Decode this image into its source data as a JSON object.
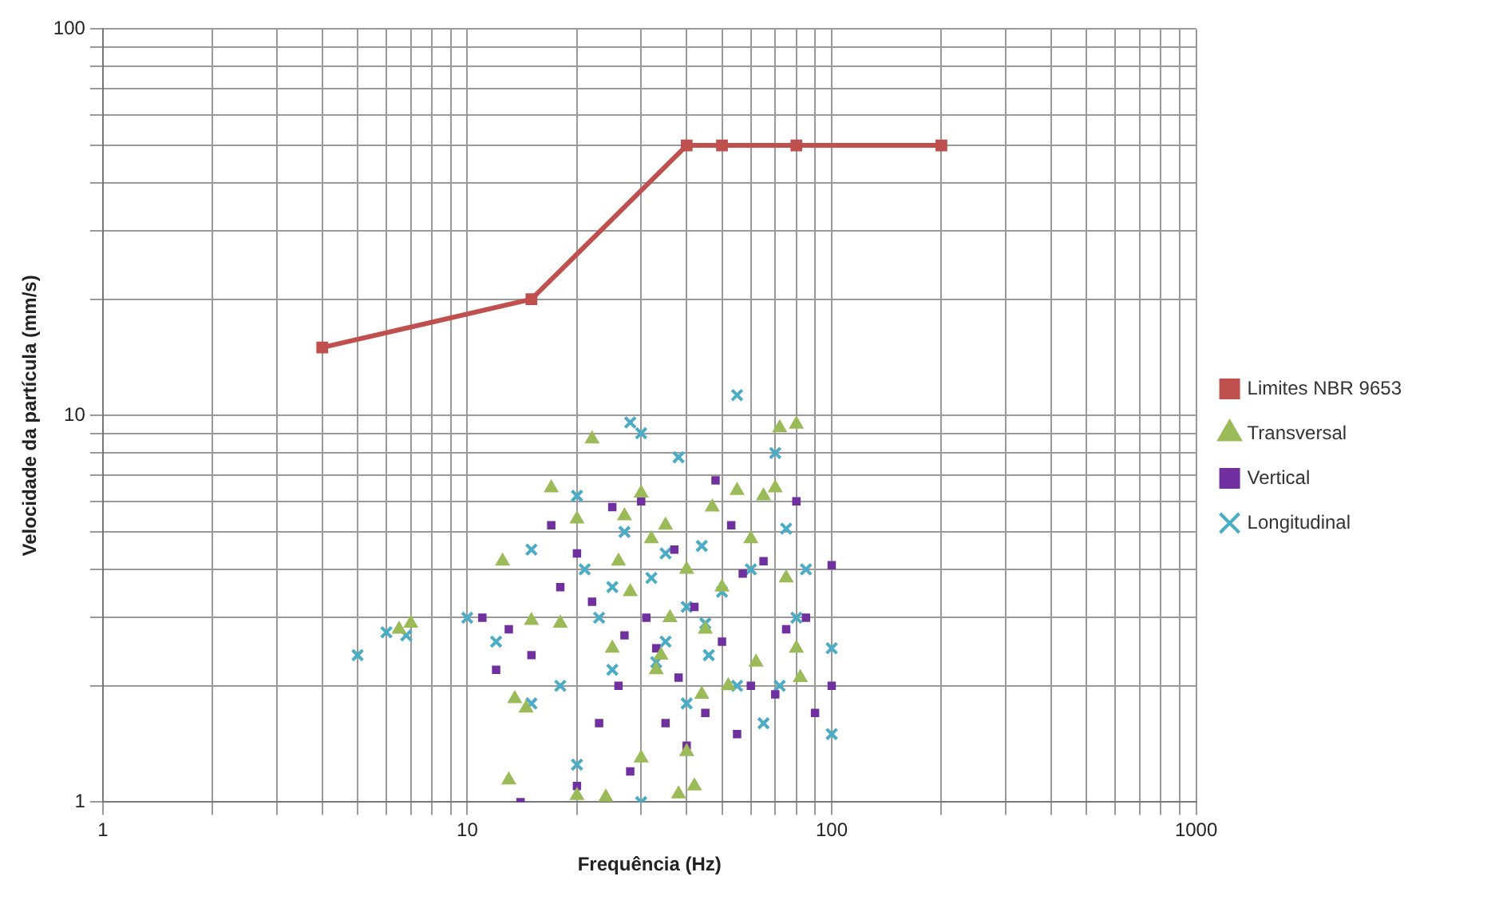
{
  "chart_data": {
    "type": "scatter",
    "xlabel": "Frequência (Hz)",
    "ylabel": "Velocidade da partícula (mm/s)",
    "log": "xy",
    "grid": true,
    "legend": "right",
    "xlim": [
      1,
      1000
    ],
    "ylim": [
      1,
      100
    ],
    "xticks": [
      1,
      {
        "value": 2,
        "label": null
      },
      {
        "value": 3,
        "label": null
      },
      {
        "value": 4,
        "label": null
      },
      {
        "value": 5,
        "label": null
      },
      {
        "value": 6,
        "label": null
      },
      {
        "value": 7,
        "label": null
      },
      {
        "value": 8,
        "label": null
      },
      {
        "value": 9,
        "label": null
      },
      10,
      {
        "value": 20,
        "label": null
      },
      {
        "value": 30,
        "label": null
      },
      {
        "value": 40,
        "label": null
      },
      {
        "value": 50,
        "label": null
      },
      {
        "value": 60,
        "label": null
      },
      {
        "value": 70,
        "label": null
      },
      {
        "value": 80,
        "label": null
      },
      {
        "value": 90,
        "label": null
      },
      100,
      {
        "value": 200,
        "label": null
      },
      {
        "value": 300,
        "label": null
      },
      {
        "value": 400,
        "label": null
      },
      {
        "value": 500,
        "label": null
      },
      {
        "value": 600,
        "label": null
      },
      {
        "value": 700,
        "label": null
      },
      {
        "value": 800,
        "label": null
      },
      {
        "value": 900,
        "label": null
      },
      1000
    ],
    "yticks": [
      1,
      {
        "value": 2,
        "label": null
      },
      {
        "value": 3,
        "label": null
      },
      {
        "value": 4,
        "label": null
      },
      {
        "value": 5,
        "label": null
      },
      {
        "value": 6,
        "label": null
      },
      {
        "value": 7,
        "label": null
      },
      {
        "value": 8,
        "label": null
      },
      {
        "value": 9,
        "label": null
      },
      10,
      {
        "value": 20,
        "label": null
      },
      {
        "value": 30,
        "label": null
      },
      {
        "value": 40,
        "label": null
      },
      {
        "value": 50,
        "label": null
      },
      {
        "value": 60,
        "label": null
      },
      {
        "value": 70,
        "label": null
      },
      {
        "value": 80,
        "label": null
      },
      {
        "value": 90,
        "label": null
      },
      100
    ],
    "series": [
      {
        "name": "Limites NBR 9653",
        "type": "line",
        "marker": "square",
        "line_style": "solid",
        "color": "#c0504d",
        "x": [
          4,
          15,
          40,
          50,
          80,
          200
        ],
        "values": [
          15,
          20,
          50,
          50,
          50,
          50
        ]
      },
      {
        "name": "Transversal",
        "marker": "triangle",
        "color": "#9bbb59",
        "x": [
          7,
          6.5,
          12.5,
          13.5,
          13,
          14.5,
          15,
          17,
          18,
          20,
          22,
          24,
          25,
          27,
          28,
          30,
          30,
          32,
          33,
          35,
          36,
          38,
          40,
          42,
          40,
          45,
          47,
          50,
          55,
          60,
          62,
          65,
          70,
          72,
          75,
          80,
          80,
          82,
          20,
          26,
          34,
          44,
          52
        ],
        "values": [
          2.9,
          2.8,
          4.2,
          1.85,
          1.14,
          1.75,
          2.95,
          6.5,
          2.9,
          1.04,
          8.7,
          1.03,
          2.5,
          5.5,
          3.5,
          6.3,
          1.3,
          4.8,
          2.2,
          5.2,
          3,
          1.05,
          1.35,
          1.1,
          4,
          2.8,
          5.8,
          3.6,
          6.4,
          4.8,
          2.3,
          6.2,
          6.5,
          9.3,
          3.8,
          9.5,
          2.5,
          2.1,
          5.4,
          4.2,
          2.4,
          1.9,
          2
        ]
      },
      {
        "name": "Vertical",
        "marker": "square",
        "color": "#7030a0",
        "x": [
          11,
          12,
          13,
          15,
          17,
          18,
          20,
          20,
          22,
          23,
          25,
          26,
          28,
          30,
          31,
          33,
          35,
          37,
          40,
          42,
          45,
          48,
          50,
          55,
          57,
          60,
          65,
          70,
          75,
          80,
          85,
          90,
          100,
          100,
          14,
          38,
          27,
          53
        ],
        "values": [
          3,
          2.2,
          2.8,
          2.4,
          5.2,
          3.6,
          1.1,
          4.4,
          3.3,
          1.6,
          5.8,
          2,
          1.2,
          6,
          3,
          2.5,
          1.6,
          4.5,
          1.4,
          3.2,
          1.7,
          6.8,
          2.6,
          1.5,
          3.9,
          2,
          4.2,
          1.9,
          2.8,
          6,
          3,
          1.7,
          2,
          4.1,
          1,
          2.1,
          2.7,
          5.2
        ]
      },
      {
        "name": "Longitudinal",
        "marker": "cross",
        "color": "#4bacc6",
        "x": [
          5,
          6,
          6.8,
          10,
          12,
          15,
          15,
          18,
          20,
          20,
          21,
          23,
          25,
          27,
          28,
          30,
          30,
          32,
          33,
          35,
          38,
          40,
          40,
          44,
          46,
          50,
          55,
          55,
          60,
          65,
          70,
          72,
          75,
          80,
          85,
          100,
          100,
          25,
          35,
          45
        ],
        "values": [
          2.4,
          2.75,
          2.7,
          3,
          2.6,
          4.5,
          1.8,
          2,
          1.25,
          6.2,
          4,
          3,
          2.2,
          5,
          9.6,
          9,
          1,
          3.8,
          2.3,
          2.6,
          7.8,
          3.2,
          1.8,
          4.6,
          2.4,
          3.5,
          11.3,
          2,
          4,
          1.6,
          8,
          2,
          5.1,
          3,
          4,
          2.5,
          1.5,
          3.6,
          4.4,
          2.9
        ]
      }
    ]
  }
}
